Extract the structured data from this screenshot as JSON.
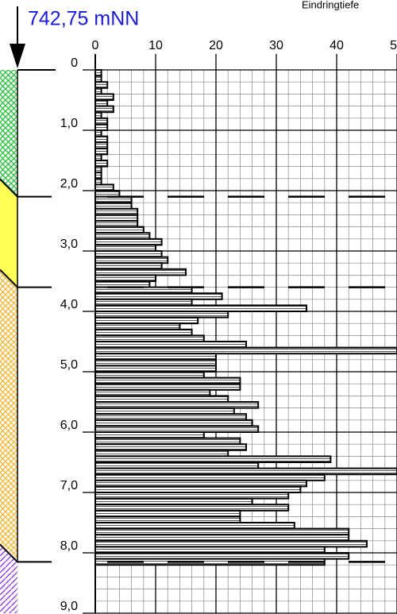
{
  "chart_data": {
    "type": "histogram",
    "orientation": "horizontal",
    "elevation_label": "742,75 mNN",
    "x_axis_title": "Eindringtiefe",
    "xlim": [
      0,
      50
    ],
    "xticks": [
      0,
      10,
      20,
      30,
      40,
      50
    ],
    "ylim": [
      0,
      9
    ],
    "yticks": [
      0,
      {
        "value": 1,
        "label": "1,0"
      },
      {
        "value": 2,
        "label": "2,0"
      },
      {
        "value": 3,
        "label": "3,0"
      },
      {
        "value": 4,
        "label": "4,0"
      },
      {
        "value": 5,
        "label": "5,0"
      },
      {
        "value": 6,
        "label": "6,0"
      },
      {
        "value": 7,
        "label": "7,0"
      },
      {
        "value": 8,
        "label": "8,0"
      },
      {
        "value": 9,
        "label": "9,0"
      }
    ],
    "grid": true,
    "minor_x": 2,
    "minor_y": 0.2,
    "bins": [
      0,
      0.1,
      0.2,
      0.3,
      0.4,
      0.5,
      0.6,
      0.7,
      0.8,
      0.9,
      1,
      1.1,
      1.2,
      1.3,
      1.4,
      1.5,
      1.6,
      1.7,
      1.8,
      1.9,
      2,
      2.1,
      2.2,
      2.3,
      2.4,
      2.5,
      2.6,
      2.7,
      2.8,
      2.9,
      3,
      3.1,
      3.2,
      3.3,
      3.4,
      3.5,
      3.6,
      3.7,
      3.8,
      3.9,
      4,
      4.1,
      4.2,
      4.3,
      4.4,
      4.5,
      4.6,
      4.7,
      4.8,
      4.9,
      5,
      5.1,
      5.2,
      5.3,
      5.4,
      5.5,
      5.6,
      5.7,
      5.8,
      5.9,
      6,
      6.1,
      6.2,
      6.3,
      6.4,
      6.5,
      6.6,
      6.7,
      6.8,
      6.9,
      7,
      7.1,
      7.2,
      7.3,
      7.4,
      7.5,
      7.6,
      7.7,
      7.8,
      7.9,
      8,
      8.1,
      8.2
    ],
    "values": [
      1,
      1,
      2,
      1,
      3,
      2,
      3,
      1,
      2,
      2,
      1,
      2,
      2,
      2,
      1,
      2,
      1,
      1,
      1,
      3,
      4,
      6,
      6,
      7,
      7,
      7,
      8,
      9,
      11,
      10,
      11,
      12,
      11,
      15,
      10,
      9,
      16,
      21,
      16,
      35,
      22,
      17,
      14,
      16,
      18,
      25,
      50,
      20,
      20,
      20,
      18,
      24,
      24,
      19,
      22,
      27,
      23,
      25,
      26,
      27,
      18,
      24,
      25,
      22,
      39,
      27,
      50,
      38,
      35,
      34,
      32,
      26,
      32,
      24,
      24,
      33,
      42,
      42,
      45,
      38,
      42,
      38
    ],
    "layer_boundaries": [
      2.1,
      3.6,
      8.15
    ],
    "layer_colors": [
      "#22c03a",
      "#ffff55",
      "#f2b630",
      "#8a2be2"
    ]
  }
}
